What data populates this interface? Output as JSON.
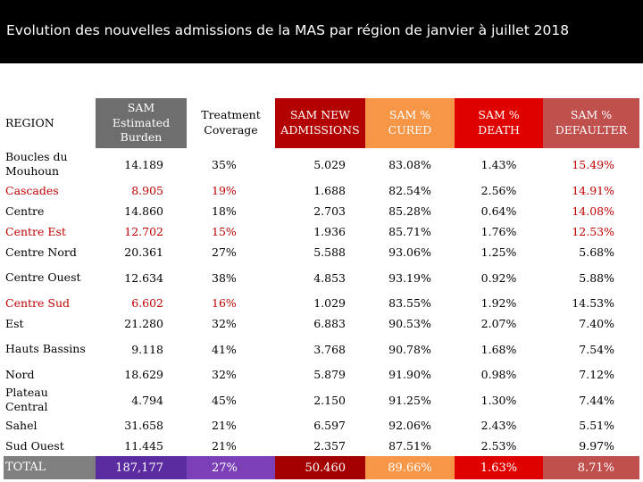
{
  "slide": {
    "title": "Evolution des nouvelles admissions de la MAS par région de janvier à juillet 2018"
  },
  "table": {
    "headers": {
      "region": "REGION",
      "estimated": "SAM Estimated Burden",
      "coverage": "Treatment Coverage",
      "new_admissions": "SAM NEW ADMISSIONS",
      "cured": "SAM % CURED",
      "death": "SAM % DEATH",
      "defaulter": "SAM % DEFAULTER"
    },
    "rows": [
      {
        "region": "Boucles du Mouhoun",
        "estimated": "14.189",
        "coverage": "35%",
        "new_admissions": "5.029",
        "cured": "83.08%",
        "death": "1.43%",
        "defaulter": "15.49%"
      },
      {
        "region": "Cascades",
        "estimated": "8.905",
        "coverage": "19%",
        "new_admissions": "1.688",
        "cured": "82.54%",
        "death": "2.56%",
        "defaulter": "14.91%"
      },
      {
        "region": "Centre",
        "estimated": "14.860",
        "coverage": "18%",
        "new_admissions": "2.703",
        "cured": "85.28%",
        "death": "0.64%",
        "defaulter": "14.08%"
      },
      {
        "region": "Centre Est",
        "estimated": "12.702",
        "coverage": "15%",
        "new_admissions": "1.936",
        "cured": "85.71%",
        "death": "1.76%",
        "defaulter": "12.53%"
      },
      {
        "region": "Centre Nord",
        "estimated": "20.361",
        "coverage": "27%",
        "new_admissions": "5.588",
        "cured": "93.06%",
        "death": "1.25%",
        "defaulter": "5.68%"
      },
      {
        "region": "Centre Ouest",
        "estimated": "12.634",
        "coverage": "38%",
        "new_admissions": "4.853",
        "cured": "93.19%",
        "death": "0.92%",
        "defaulter": "5.88%"
      },
      {
        "region": "Centre Sud",
        "estimated": "6.602",
        "coverage": "16%",
        "new_admissions": "1.029",
        "cured": "83.55%",
        "death": "1.92%",
        "defaulter": "14.53%"
      },
      {
        "region": "Est",
        "estimated": "21.280",
        "coverage": "32%",
        "new_admissions": "6.883",
        "cured": "90.53%",
        "death": "2.07%",
        "defaulter": "7.40%"
      },
      {
        "region": "Hauts Bassins",
        "estimated": "9.118",
        "coverage": "41%",
        "new_admissions": "3.768",
        "cured": "90.78%",
        "death": "1.68%",
        "defaulter": "7.54%"
      },
      {
        "region": "Nord",
        "estimated": "18.629",
        "coverage": "32%",
        "new_admissions": "5.879",
        "cured": "91.90%",
        "death": "0.98%",
        "defaulter": "7.12%"
      },
      {
        "region": "Plateau Central",
        "estimated": "4.794",
        "coverage": "45%",
        "new_admissions": "2.150",
        "cured": "91.25%",
        "death": "1.30%",
        "defaulter": "7.44%"
      },
      {
        "region": "Sahel",
        "estimated": "31.658",
        "coverage": "21%",
        "new_admissions": "6.597",
        "cured": "92.06%",
        "death": "2.43%",
        "defaulter": "5.51%"
      },
      {
        "region": "Sud Ouest",
        "estimated": "11.445",
        "coverage": "21%",
        "new_admissions": "2.357",
        "cured": "87.51%",
        "death": "2.53%",
        "defaulter": "9.97%"
      }
    ],
    "total": {
      "label": "TOTAL",
      "estimated": "187,177",
      "coverage": "27%",
      "new_admissions": "50.460",
      "cured": "89.66%",
      "death": "1.63%",
      "defaulter": "8.71%"
    }
  },
  "colors": {
    "title_bar": "#000000",
    "highlight_red_text": "#c00000",
    "estimated_header": "#6e6e6e",
    "new_admissions_header": "#b30000",
    "cured_header": "#f79646",
    "death_header": "#e00000",
    "defaulter_header": "#c0504d",
    "total_estimated": "#5b2ca0",
    "total_coverage": "#7b3fb6"
  }
}
